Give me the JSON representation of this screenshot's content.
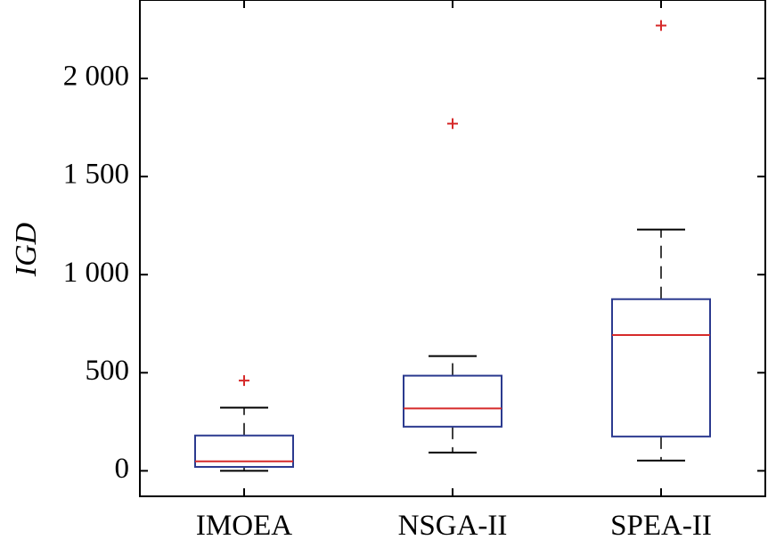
{
  "chart_data": {
    "type": "box",
    "ylabel": "IGD",
    "xlabel": "",
    "ylim": [
      -130,
      2400
    ],
    "y_ticks": [
      0,
      500,
      1000,
      1500,
      2000
    ],
    "y_tick_labels": [
      "0",
      "500",
      "1 000",
      "1 500",
      "2 000"
    ],
    "categories": [
      "IMOEA",
      "NSGA-II",
      "SPEA-II"
    ],
    "boxes": [
      {
        "name": "IMOEA",
        "whisker_low": 0,
        "q1": 20,
        "median": 48,
        "q3": 180,
        "whisker_high": 322,
        "outliers": [
          460
        ]
      },
      {
        "name": "NSGA-II",
        "whisker_low": 93,
        "q1": 225,
        "median": 318,
        "q3": 485,
        "whisker_high": 585,
        "outliers": [
          1770
        ]
      },
      {
        "name": "SPEA-II",
        "whisker_low": 52,
        "q1": 175,
        "median": 692,
        "q3": 875,
        "whisker_high": 1230,
        "outliers": [
          2270
        ]
      }
    ],
    "box_color": "#2b3a8f",
    "median_color": "#d62a2a",
    "outlier_color": "#d62a2a",
    "whisker_color": "#000000",
    "grid": false
  }
}
